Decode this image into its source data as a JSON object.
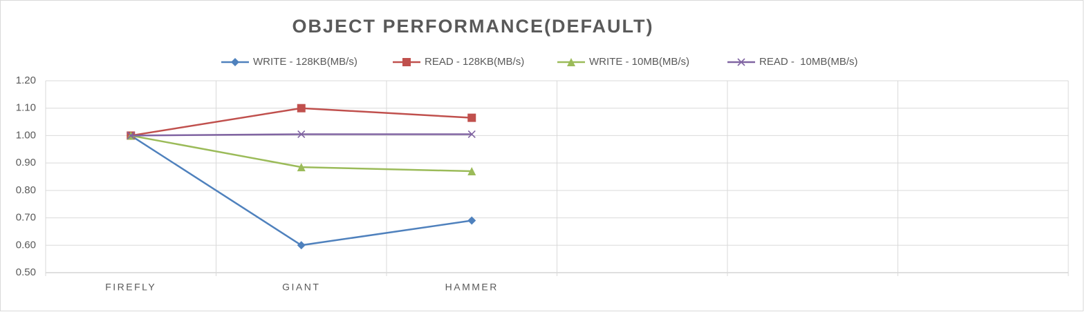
{
  "chart_data": {
    "type": "line",
    "title": "OBJECT  PERFORMANCE(DEFAULT)",
    "categories": [
      "FIREFLY",
      "GIANT",
      "HAMMER",
      null,
      null,
      null
    ],
    "series": [
      {
        "name": "WRITE - 128KB(MB/s)",
        "color": "#4f81bd",
        "marker": "diamond",
        "values": [
          1.0,
          0.6,
          0.69,
          null,
          null,
          null
        ]
      },
      {
        "name": "READ - 128KB(MB/s)",
        "color": "#c0504d",
        "marker": "square",
        "values": [
          1.0,
          1.1,
          1.065,
          null,
          null,
          null
        ]
      },
      {
        "name": "WRITE - 10MB(MB/s)",
        "color": "#9bbb59",
        "marker": "triangle",
        "values": [
          1.0,
          0.885,
          0.87,
          null,
          null,
          null
        ]
      },
      {
        "name": "READ -  10MB(MB/s)",
        "color": "#8064a2",
        "marker": "x",
        "values": [
          1.0,
          1.005,
          1.005,
          null,
          null,
          null
        ]
      }
    ],
    "ylim": [
      0.5,
      1.2
    ],
    "yticks": [
      {
        "value": 0.5,
        "label": "0.50"
      },
      {
        "value": 0.6,
        "label": "0.60"
      },
      {
        "value": 0.7,
        "label": "0.70"
      },
      {
        "value": 0.8,
        "label": "0.80"
      },
      {
        "value": 0.9,
        "label": "0.90"
      },
      {
        "value": 1.0,
        "label": "1.00"
      },
      {
        "value": 1.1,
        "label": "1.10"
      },
      {
        "value": 1.2,
        "label": "1.20"
      }
    ],
    "grid": true,
    "legend": "top"
  }
}
